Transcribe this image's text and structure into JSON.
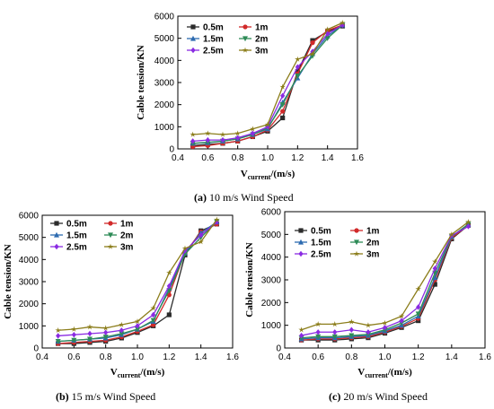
{
  "chart_data": [
    {
      "type": "line",
      "caption_letter": "(a)",
      "caption_text": " 10 m/s Wind Speed",
      "ylabel": "Cable tension/KN",
      "xlabel_main": "V",
      "xlabel_sub": "current",
      "xlabel_rest": "/(m/s)",
      "xlim": [
        0.4,
        1.6
      ],
      "ylim": [
        0,
        6000
      ],
      "xticks": [
        "0.4",
        "0.6",
        "0.8",
        "1.0",
        "1.2",
        "1.4",
        "1.6"
      ],
      "yticks": [
        "0",
        "1000",
        "2000",
        "3000",
        "4000",
        "5000",
        "6000"
      ],
      "x": [
        0.5,
        0.6,
        0.7,
        0.8,
        0.9,
        1.0,
        1.1,
        1.2,
        1.3,
        1.4,
        1.5
      ],
      "series": [
        {
          "name": "0.5m",
          "color": "#2b2b2b",
          "marker": "square",
          "values": [
            150,
            200,
            250,
            350,
            550,
            800,
            1400,
            3500,
            4900,
            5300,
            5550
          ]
        },
        {
          "name": "1m",
          "color": "#d12a2a",
          "marker": "circle",
          "values": [
            100,
            150,
            250,
            350,
            550,
            850,
            1700,
            3400,
            4800,
            5350,
            5600
          ]
        },
        {
          "name": "1.5m",
          "color": "#2d6bb0",
          "marker": "triangle",
          "values": [
            250,
            280,
            350,
            450,
            650,
            900,
            2100,
            3200,
            4300,
            5100,
            5600
          ]
        },
        {
          "name": "2m",
          "color": "#2e8b57",
          "marker": "tri-down",
          "values": [
            250,
            300,
            350,
            450,
            650,
            950,
            2000,
            3300,
            4200,
            5000,
            5600
          ]
        },
        {
          "name": "2.5m",
          "color": "#8a2be2",
          "marker": "diamond",
          "values": [
            350,
            400,
            400,
            500,
            700,
            1000,
            2400,
            3700,
            4400,
            5200,
            5600
          ]
        },
        {
          "name": "3m",
          "color": "#8b7d1a",
          "marker": "star",
          "values": [
            650,
            700,
            650,
            700,
            900,
            1100,
            2800,
            4050,
            4300,
            5400,
            5700
          ]
        }
      ]
    },
    {
      "type": "line",
      "caption_letter": "(b)",
      "caption_text": " 15 m/s Wind Speed",
      "ylabel": "Cable tension/KN",
      "xlabel_main": "V",
      "xlabel_sub": "current",
      "xlabel_rest": "/(m/s)",
      "xlim": [
        0.4,
        1.6
      ],
      "ylim": [
        0,
        6000
      ],
      "xticks": [
        "0.4",
        "0.6",
        "0.8",
        "1.0",
        "1.2",
        "1.4",
        "1.6"
      ],
      "yticks": [
        "0",
        "1000",
        "2000",
        "3000",
        "4000",
        "5000",
        "6000"
      ],
      "x": [
        0.5,
        0.6,
        0.7,
        0.8,
        0.9,
        1.0,
        1.1,
        1.2,
        1.3,
        1.4,
        1.5
      ],
      "series": [
        {
          "name": "0.5m",
          "color": "#2b2b2b",
          "marker": "square",
          "values": [
            200,
            200,
            250,
            300,
            450,
            700,
            1000,
            1500,
            4200,
            5300,
            5600
          ]
        },
        {
          "name": "1m",
          "color": "#d12a2a",
          "marker": "circle",
          "values": [
            200,
            250,
            300,
            350,
            500,
            750,
            1050,
            2400,
            4300,
            5250,
            5600
          ]
        },
        {
          "name": "1.5m",
          "color": "#2d6bb0",
          "marker": "triangle",
          "values": [
            300,
            350,
            400,
            450,
            600,
            850,
            1200,
            2700,
            4300,
            5200,
            5700
          ]
        },
        {
          "name": "2m",
          "color": "#2e8b57",
          "marker": "tri-down",
          "values": [
            300,
            350,
            400,
            500,
            650,
            850,
            1250,
            2600,
            4250,
            5000,
            5700
          ]
        },
        {
          "name": "2.5m",
          "color": "#8a2be2",
          "marker": "diamond",
          "values": [
            550,
            600,
            650,
            700,
            800,
            1000,
            1500,
            2800,
            4400,
            5100,
            5700
          ]
        },
        {
          "name": "3m",
          "color": "#8b7d1a",
          "marker": "star",
          "values": [
            800,
            850,
            950,
            900,
            1050,
            1200,
            1800,
            3400,
            4500,
            4800,
            5800
          ]
        }
      ]
    },
    {
      "type": "line",
      "caption_letter": "(c)",
      "caption_text": " 20 m/s Wind Speed",
      "ylabel": "Cable tension/KN",
      "xlabel_main": "V",
      "xlabel_sub": "current",
      "xlabel_rest": "/(m/s)",
      "xlim": [
        0.4,
        1.6
      ],
      "ylim": [
        0,
        6000
      ],
      "xticks": [
        "0.4",
        "0.6",
        "0.8",
        "1.0",
        "1.2",
        "1.4",
        "1.6"
      ],
      "yticks": [
        "0",
        "1000",
        "2000",
        "3000",
        "4000",
        "5000",
        "6000"
      ],
      "x": [
        0.5,
        0.6,
        0.7,
        0.8,
        0.9,
        1.0,
        1.1,
        1.2,
        1.3,
        1.4,
        1.5
      ],
      "series": [
        {
          "name": "0.5m",
          "color": "#2b2b2b",
          "marker": "square",
          "values": [
            350,
            350,
            350,
            400,
            450,
            650,
            900,
            1200,
            2800,
            4800,
            5400
          ]
        },
        {
          "name": "1m",
          "color": "#d12a2a",
          "marker": "circle",
          "values": [
            350,
            400,
            400,
            450,
            500,
            700,
            950,
            1300,
            3000,
            4850,
            5400
          ]
        },
        {
          "name": "1.5m",
          "color": "#2d6bb0",
          "marker": "triangle",
          "values": [
            400,
            450,
            450,
            500,
            550,
            750,
            1000,
            1400,
            3100,
            4900,
            5450
          ]
        },
        {
          "name": "2m",
          "color": "#2e8b57",
          "marker": "tri-down",
          "values": [
            450,
            500,
            500,
            550,
            600,
            800,
            1100,
            1500,
            3300,
            4900,
            5450
          ]
        },
        {
          "name": "2.5m",
          "color": "#8a2be2",
          "marker": "diamond",
          "values": [
            550,
            700,
            700,
            800,
            700,
            900,
            1200,
            1800,
            3500,
            4950,
            5350
          ]
        },
        {
          "name": "3m",
          "color": "#8b7d1a",
          "marker": "star",
          "values": [
            800,
            1050,
            1050,
            1150,
            1000,
            1100,
            1400,
            2600,
            3800,
            5000,
            5550
          ]
        }
      ]
    }
  ]
}
